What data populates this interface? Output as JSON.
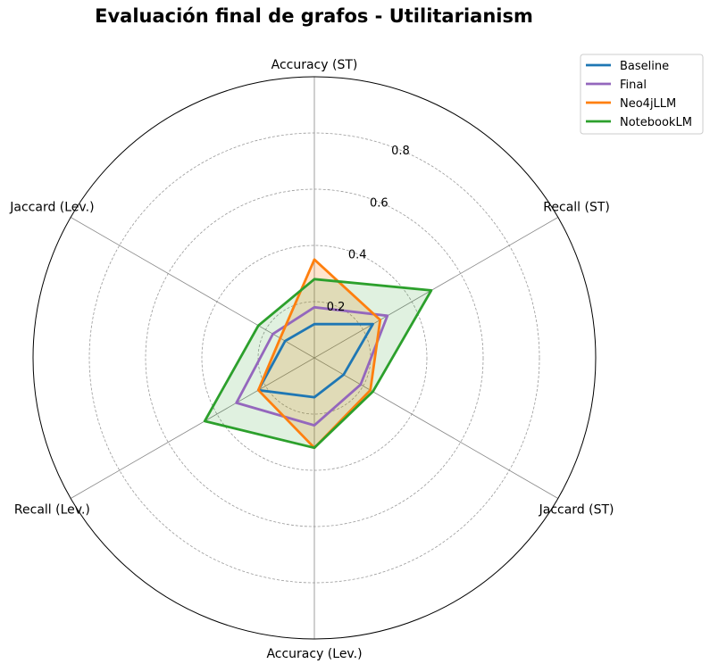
{
  "chart_data": {
    "type": "radar",
    "title": "Evaluación final de grafos - Utilitarianism",
    "axes": [
      "Accuracy (ST)",
      "Recall (ST)",
      "Jaccard (ST)",
      "Accuracy (Lev.)",
      "Recall (Lev.)",
      "Jaccard (Lev.)"
    ],
    "rlim": [
      0,
      1.0
    ],
    "rticks": [
      0.2,
      0.4,
      0.6,
      0.8
    ],
    "rtick_labels": [
      "0.2",
      "0.4",
      "0.6",
      "0.8"
    ],
    "grid": true,
    "legend_position": "top-right",
    "series": [
      {
        "name": "Baseline",
        "color": "#1f77b4",
        "values": [
          0.12,
          0.24,
          0.12,
          0.14,
          0.23,
          0.12
        ],
        "fill": false
      },
      {
        "name": "Final",
        "color": "#9467bd",
        "values": [
          0.18,
          0.3,
          0.19,
          0.24,
          0.32,
          0.17
        ],
        "fill": false
      },
      {
        "name": "Neo4jLLM",
        "color": "#ff7f0e",
        "values": [
          0.35,
          0.27,
          0.23,
          0.32,
          0.23,
          0.14
        ],
        "fill": true,
        "fill_color": "#ff7f0e",
        "fill_opacity": 0.2
      },
      {
        "name": "NotebookLM",
        "color": "#2ca02c",
        "values": [
          0.28,
          0.48,
          0.24,
          0.32,
          0.45,
          0.23
        ],
        "fill": true,
        "fill_color": "#2ca02c",
        "fill_opacity": 0.15
      }
    ]
  }
}
